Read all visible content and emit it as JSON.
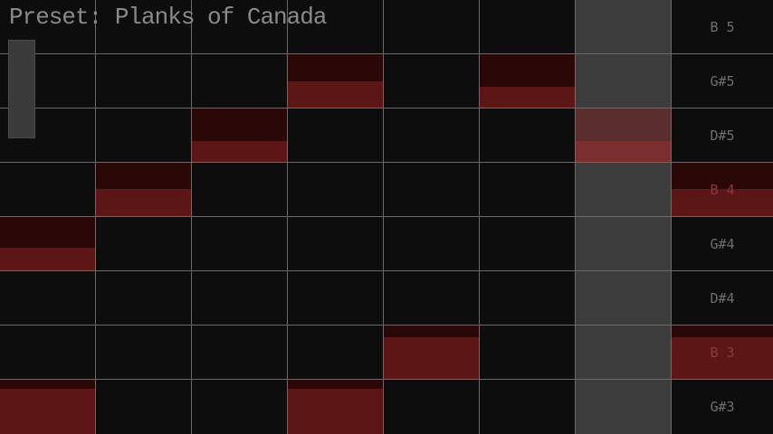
{
  "title": "Preset: Planks of Canada",
  "notes": [
    "B 5",
    "G#5",
    "D#5",
    "B 4",
    "G#4",
    "D#4",
    "B 3",
    "G#3"
  ],
  "playhead_column": 6,
  "active_cells": [
    {
      "row": 1,
      "col": 3,
      "level": 0.5
    },
    {
      "row": 1,
      "col": 5,
      "level": 0.4
    },
    {
      "row": 2,
      "col": 2,
      "level": 0.4
    },
    {
      "row": 2,
      "col": 6,
      "level": 0.4
    },
    {
      "row": 3,
      "col": 1,
      "level": 0.52
    },
    {
      "row": 4,
      "col": 0,
      "level": 0.43
    },
    {
      "row": 6,
      "col": 4,
      "level": 0.78
    },
    {
      "row": 7,
      "col": 0,
      "level": 0.83
    },
    {
      "row": 7,
      "col": 3,
      "level": 0.83
    }
  ],
  "active_labels": [
    3,
    6
  ],
  "colors": {
    "note_fill": "#5c1616",
    "note_top": "#2a0808",
    "playhead": "#3c3c3c",
    "playhead_fill": "#7a2e2e",
    "playhead_top": "#5a2e2e",
    "label": "#6e6e6e",
    "label_active": "#8a3a3a"
  }
}
